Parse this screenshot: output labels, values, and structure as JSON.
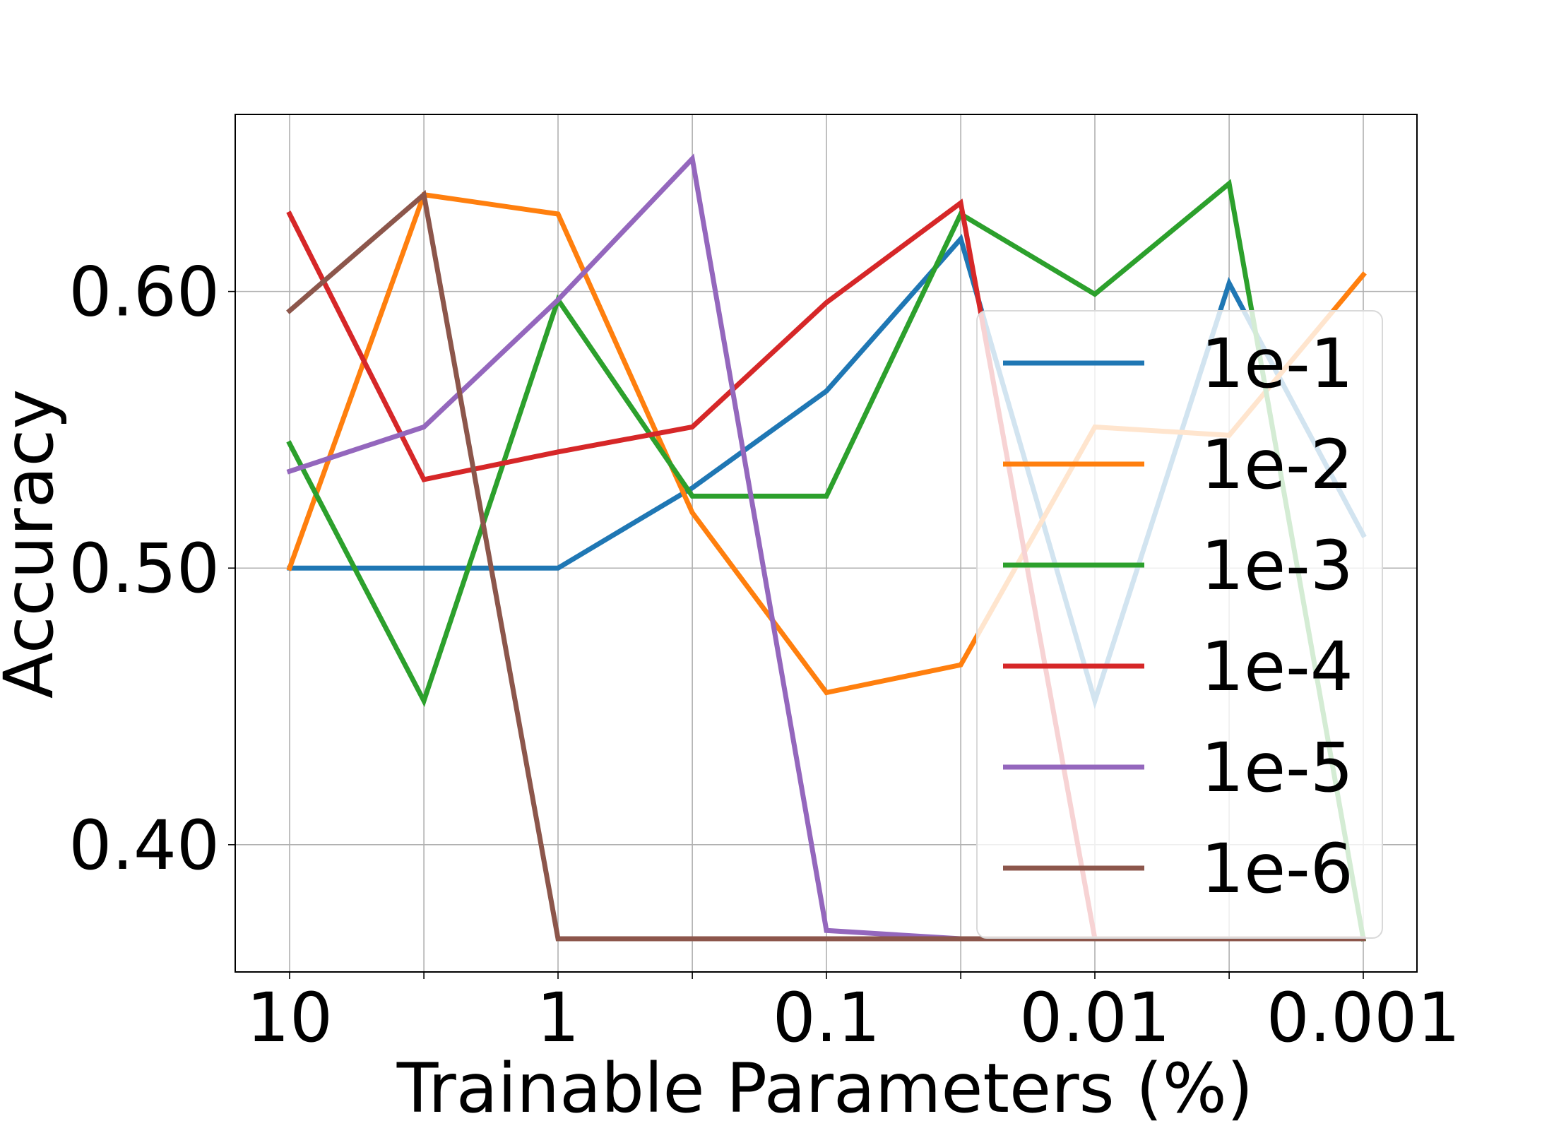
{
  "chart_data": {
    "type": "line",
    "title": "",
    "xlabel": "Trainable Parameters (%)",
    "ylabel": "Accuracy",
    "x_scale": "log",
    "x_direction": "descending",
    "x_tick_values": [
      10,
      1,
      0.1,
      0.01,
      0.001
    ],
    "x_tick_labels": [
      "10",
      "1",
      "0.1",
      "0.01",
      "0.001"
    ],
    "x_minor_tick_values": [
      3.16,
      0.316,
      0.0316,
      0.00316
    ],
    "y_tick_values": [
      0.4,
      0.5,
      0.6
    ],
    "y_tick_labels": [
      "0.40",
      "0.50",
      "0.60"
    ],
    "ylim": [
      0.354,
      0.664
    ],
    "grid": true,
    "legend_position": "lower-right",
    "x": [
      10,
      3.16,
      1,
      0.316,
      0.1,
      0.0316,
      0.01,
      0.00316,
      0.001
    ],
    "series": [
      {
        "name": "1e-1",
        "color": "#1f77b4",
        "values": [
          0.5,
          0.5,
          0.5,
          0.529,
          0.564,
          0.619,
          0.452,
          0.603,
          0.512
        ]
      },
      {
        "name": "1e-2",
        "color": "#ff7f0e",
        "values": [
          0.5,
          0.635,
          0.628,
          0.52,
          0.455,
          0.465,
          0.551,
          0.548,
          0.606
        ]
      },
      {
        "name": "1e-3",
        "color": "#2ca02c",
        "values": [
          0.545,
          0.452,
          0.597,
          0.526,
          0.526,
          0.628,
          0.599,
          0.639,
          0.366
        ]
      },
      {
        "name": "1e-4",
        "color": "#d62728",
        "values": [
          0.628,
          0.532,
          0.542,
          0.551,
          0.596,
          0.632,
          0.366,
          0.366,
          0.366
        ]
      },
      {
        "name": "1e-5",
        "color": "#9467bd",
        "values": [
          0.535,
          0.551,
          0.597,
          0.648,
          0.369,
          0.366,
          0.366,
          0.366,
          0.366
        ]
      },
      {
        "name": "1e-6",
        "color": "#8c564b",
        "values": [
          0.593,
          0.635,
          0.366,
          0.366,
          0.366,
          0.366,
          0.366,
          0.366,
          0.366
        ]
      }
    ]
  }
}
